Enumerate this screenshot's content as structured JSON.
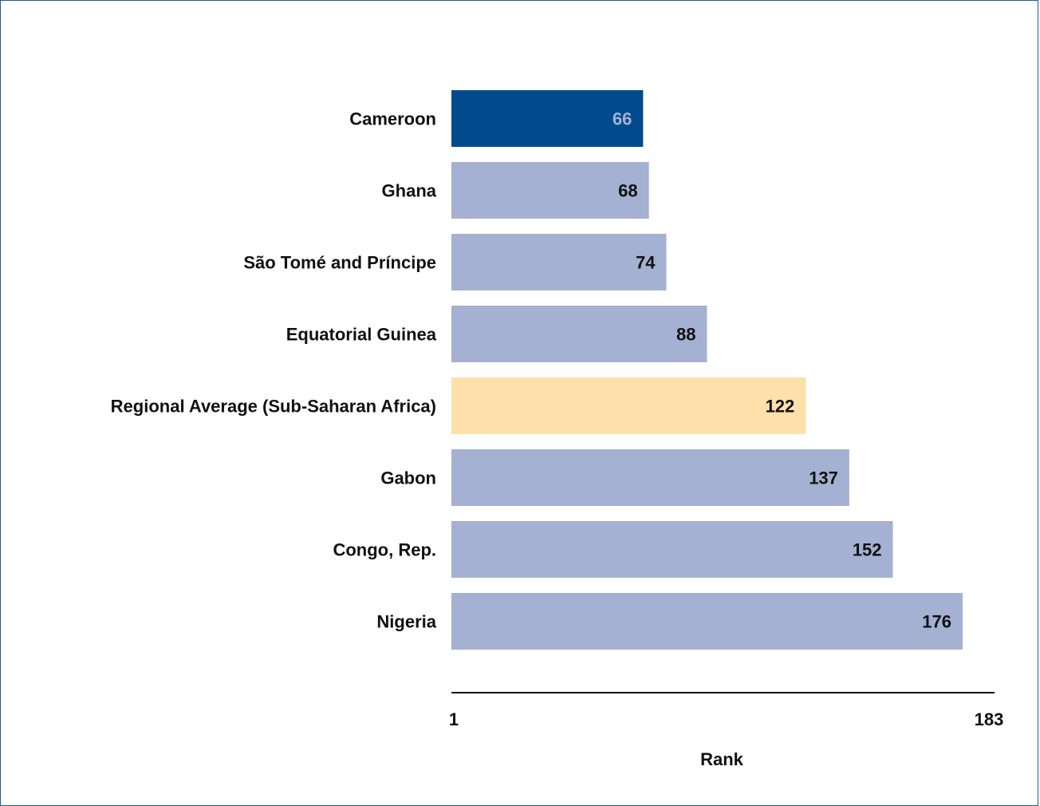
{
  "chart_data": {
    "type": "bar",
    "orientation": "horizontal",
    "categories": [
      "Cameroon",
      "Ghana",
      "São Tomé and Príncipe",
      "Equatorial Guinea",
      "Regional Average (Sub-Saharan Africa)",
      "Gabon",
      "Congo, Rep.",
      "Nigeria"
    ],
    "values": [
      66,
      68,
      74,
      88,
      122,
      137,
      152,
      176
    ],
    "bar_colors": [
      "#004a8d",
      "#a5b1d2",
      "#a5b1d2",
      "#a5b1d2",
      "#fde0aa",
      "#a5b1d2",
      "#a5b1d2",
      "#a5b1d2"
    ],
    "label_colors": [
      "#a5b1d2",
      "#111111",
      "#111111",
      "#111111",
      "#111111",
      "#111111",
      "#111111",
      "#111111"
    ],
    "xlabel": "Rank",
    "xlim": [
      1,
      183
    ],
    "x_ticks": [
      "1",
      "183"
    ],
    "grid": false,
    "legend": "none"
  }
}
